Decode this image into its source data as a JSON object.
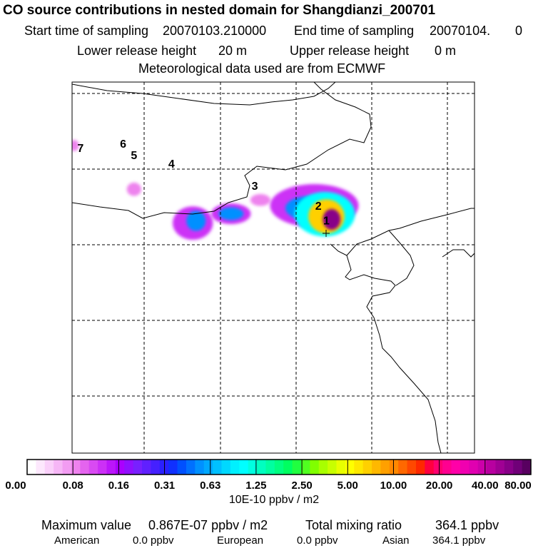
{
  "header": {
    "title": "CO  source contributions in nested domain for Shangdianzi_200701",
    "start_label": "Start time of sampling",
    "start_value": "20070103.210000",
    "end_label": "End time of sampling",
    "end_value": "20070104.",
    "end_suffix": "0",
    "lower_label": "Lower release height",
    "lower_value": "20 m",
    "upper_label": "Upper release height",
    "upper_value": "0 m",
    "met_line": "Meteorological data used are from ECMWF"
  },
  "chart_data": {
    "type": "heatmap",
    "title": "CO  source contributions in nested domain for Shangdianzi_200701",
    "units": "10E-10 ppbv / m2",
    "colorbar": {
      "tick_labels": [
        "0.00",
        "0.08",
        "0.16",
        "0.31",
        "0.63",
        "1.25",
        "2.50",
        "5.00",
        "10.00",
        "20.00",
        "40.00",
        "80.00"
      ],
      "colors": [
        "#ffffff",
        "#fde8fd",
        "#fad0fa",
        "#f6b6f6",
        "#f29cf2",
        "#ee82ee",
        "#e464ee",
        "#d94af2",
        "#cc30f6",
        "#bb16fa",
        "#aa00ff",
        "#9010ff",
        "#7820ff",
        "#6020ff",
        "#4520ff",
        "#2a20ff",
        "#1030ff",
        "#0050ff",
        "#0070ff",
        "#0090ff",
        "#00a8ff",
        "#00c0ff",
        "#00d8ff",
        "#00f0ff",
        "#00ffff",
        "#00ffe0",
        "#00ffc0",
        "#00ffa0",
        "#00ff80",
        "#00ff60",
        "#20ff40",
        "#50ff20",
        "#80ff00",
        "#a8ff00",
        "#c8ff00",
        "#e8ff00",
        "#ffff00",
        "#ffe800",
        "#ffd000",
        "#ffb800",
        "#ffa000",
        "#ff8800",
        "#ff6800",
        "#ff4800",
        "#ff2800",
        "#ff0040",
        "#ff0070",
        "#ff0090",
        "#ff00a8",
        "#f000b0",
        "#e000b0",
        "#cc00aa",
        "#b800a0",
        "#a00094",
        "#880088",
        "#700078",
        "#580060"
      ]
    },
    "gridlines": true,
    "receptors": [
      {
        "label": "1",
        "x": 0.632,
        "y": 0.372
      },
      {
        "label": "2",
        "x": 0.612,
        "y": 0.333
      },
      {
        "label": "3",
        "x": 0.454,
        "y": 0.279
      },
      {
        "label": "4",
        "x": 0.247,
        "y": 0.219
      },
      {
        "label": "5",
        "x": 0.154,
        "y": 0.196
      },
      {
        "label": "6",
        "x": 0.127,
        "y": 0.165
      },
      {
        "label": "7",
        "x": 0.021,
        "y": 0.177
      }
    ],
    "plumes": [
      {
        "x": 0.645,
        "y": 0.37,
        "rx": 0.022,
        "ry": 0.028,
        "level": 11
      },
      {
        "x": 0.632,
        "y": 0.362,
        "rx": 0.045,
        "ry": 0.046,
        "level": 9
      },
      {
        "x": 0.628,
        "y": 0.356,
        "rx": 0.075,
        "ry": 0.06,
        "level": 6
      },
      {
        "x": 0.585,
        "y": 0.34,
        "rx": 0.055,
        "ry": 0.032,
        "level": 5
      },
      {
        "x": 0.602,
        "y": 0.333,
        "rx": 0.11,
        "ry": 0.058,
        "level": 3
      },
      {
        "x": 0.468,
        "y": 0.318,
        "rx": 0.025,
        "ry": 0.016,
        "level": 2
      },
      {
        "x": 0.395,
        "y": 0.355,
        "rx": 0.031,
        "ry": 0.017,
        "level": 5
      },
      {
        "x": 0.395,
        "y": 0.355,
        "rx": 0.049,
        "ry": 0.028,
        "level": 3
      },
      {
        "x": 0.308,
        "y": 0.374,
        "rx": 0.024,
        "ry": 0.027,
        "level": 5
      },
      {
        "x": 0.3,
        "y": 0.38,
        "rx": 0.05,
        "ry": 0.045,
        "level": 3
      },
      {
        "x": 0.154,
        "y": 0.289,
        "rx": 0.018,
        "ry": 0.018,
        "level": 2
      },
      {
        "x": 0.005,
        "y": 0.171,
        "rx": 0.012,
        "ry": 0.015,
        "level": 2
      }
    ]
  },
  "footer": {
    "max_label": "Maximum value",
    "max_value": "0.867E-07 ppbv / m2",
    "total_label": "Total mixing ratio",
    "total_value": "364.1 ppbv",
    "american_label": "American",
    "american_value": "0.0 ppbv",
    "european_label": "European",
    "european_value": "0.0 ppbv",
    "asian_label": "Asian",
    "asian_value": "364.1 ppbv"
  }
}
